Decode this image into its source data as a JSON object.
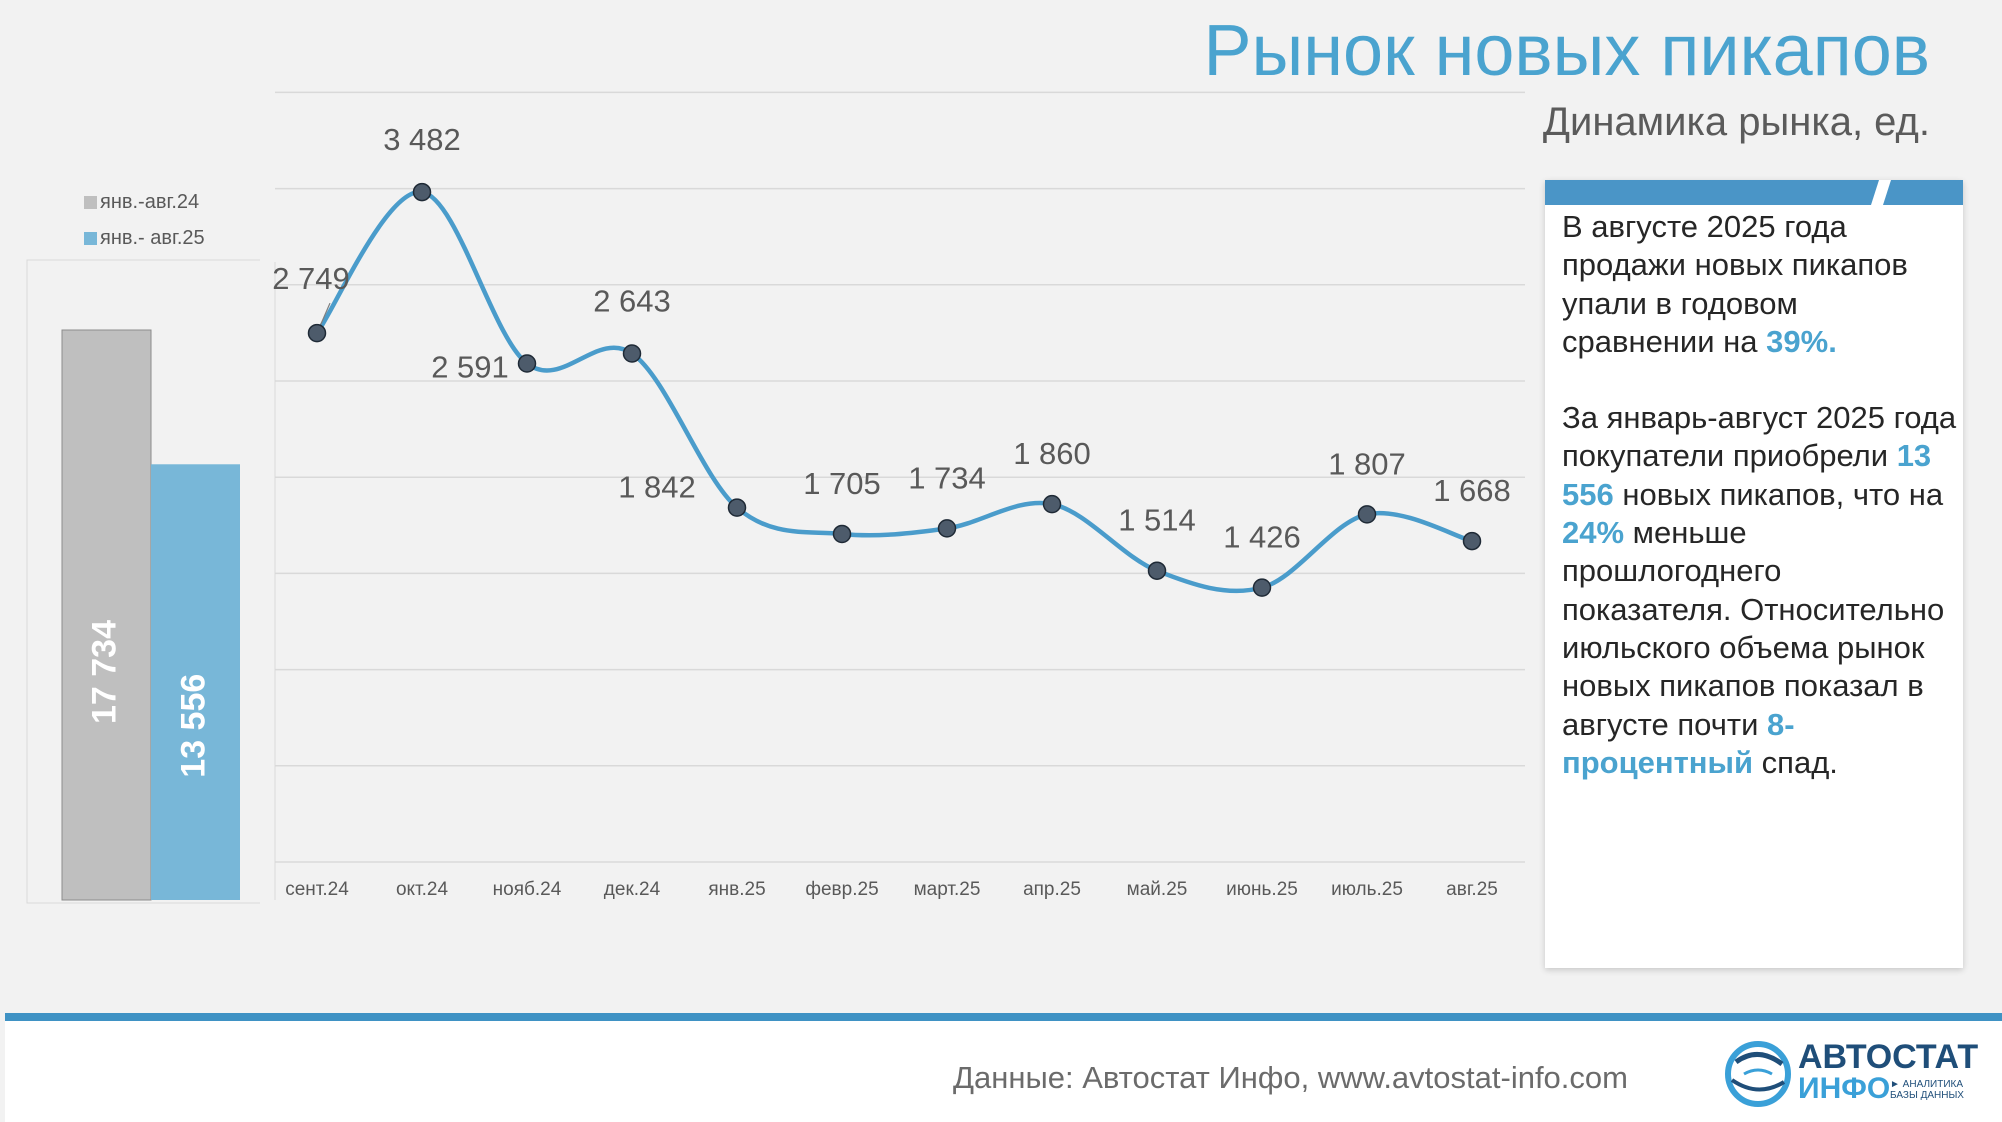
{
  "title": "Рынок новых пикапов",
  "subtitle": "Динамика рынка, ед.",
  "colors": {
    "accent": "#4aa3cf",
    "line": "#4a9ccb",
    "bar_prev": "#bfbfbf",
    "bar_curr": "#78b7d8",
    "marker": "#4d5b6b",
    "footer_bar": "#3f92c4"
  },
  "legend": [
    {
      "label": "янв.-авг.24",
      "color": "#bfbfbf"
    },
    {
      "label": "янв.- авг.25",
      "color": "#78b7d8"
    }
  ],
  "chart_data": [
    {
      "type": "bar",
      "categories": [
        "янв.-авг.24",
        "янв.- авг.25"
      ],
      "values": [
        17734,
        13556
      ],
      "value_labels": [
        "17 734",
        "13 556"
      ],
      "legend_position": "top-left"
    },
    {
      "type": "line",
      "categories": [
        "сент.24",
        "окт.24",
        "нояб.24",
        "дек.24",
        "янв.25",
        "февр.25",
        "март.25",
        "апр.25",
        "май.25",
        "июнь.25",
        "июль.25",
        "авг.25"
      ],
      "values": [
        2749,
        3482,
        2591,
        2643,
        1842,
        1705,
        1734,
        1860,
        1514,
        1426,
        1807,
        1668
      ],
      "value_labels": [
        "2 749",
        "3 482",
        "2 591",
        "2 643",
        "1 842",
        "1 705",
        "1 734",
        "1 860",
        "1 514",
        "1 426",
        "1 807",
        "1 668"
      ],
      "ylim": [
        0,
        4000
      ],
      "grid": true,
      "smooth": true
    }
  ],
  "info": {
    "p1_text": "В августе 2025 года продажи новых пикапов упали в годовом сравнении на ",
    "p1_highlight": "39%.",
    "p2_a": "За январь-август 2025 года покупатели приобрели ",
    "p2_h1": "13 556",
    "p2_b": " новых пикапов, что на ",
    "p2_h2": "24%",
    "p2_c": " меньше прошлогоднего показателя. Относительно июльского объема рынок новых пикапов показал в августе почти ",
    "p2_h3": "8-процентный",
    "p2_d": " спад."
  },
  "footer": {
    "source": "Данные: Автостат Инфо, www.avtostat-info.com",
    "logo_top": "АВТОСТАТ",
    "logo_bottom": "ИНФО",
    "logo_tag": "► АНАЛИТИКА БАЗЫ ДАННЫХ"
  }
}
